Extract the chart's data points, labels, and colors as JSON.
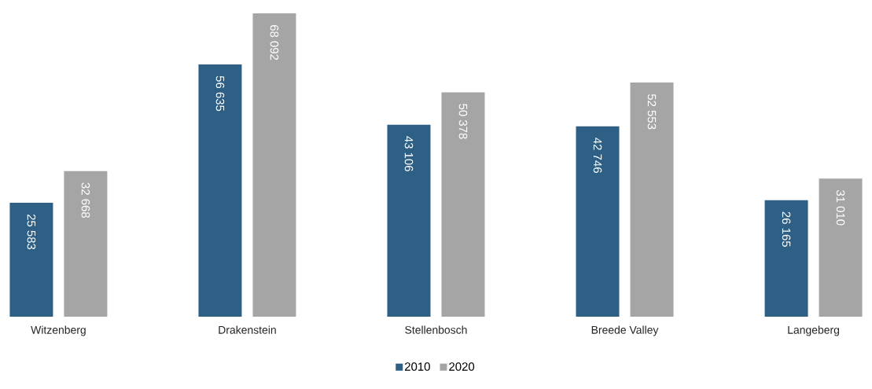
{
  "chart_data": {
    "type": "bar",
    "categories": [
      "Witzenberg",
      "Drakenstein",
      "Stellenbosch",
      "Breede Valley",
      "Langeberg"
    ],
    "series": [
      {
        "name": "2010",
        "color": "#2e5f85",
        "values": [
          25583,
          56635,
          43106,
          42746,
          26165
        ],
        "value_labels": [
          "25 583",
          "56 635",
          "43 106",
          "42 746",
          "26 165"
        ]
      },
      {
        "name": "2020",
        "color": "#a5a5a5",
        "values": [
          32668,
          68092,
          50378,
          52553,
          31010
        ],
        "value_labels": [
          "32 668",
          "68 092",
          "50 378",
          "52 553",
          "31 010"
        ]
      }
    ],
    "tick_labels": "x",
    "legend": "bottom",
    "marker": "square"
  }
}
